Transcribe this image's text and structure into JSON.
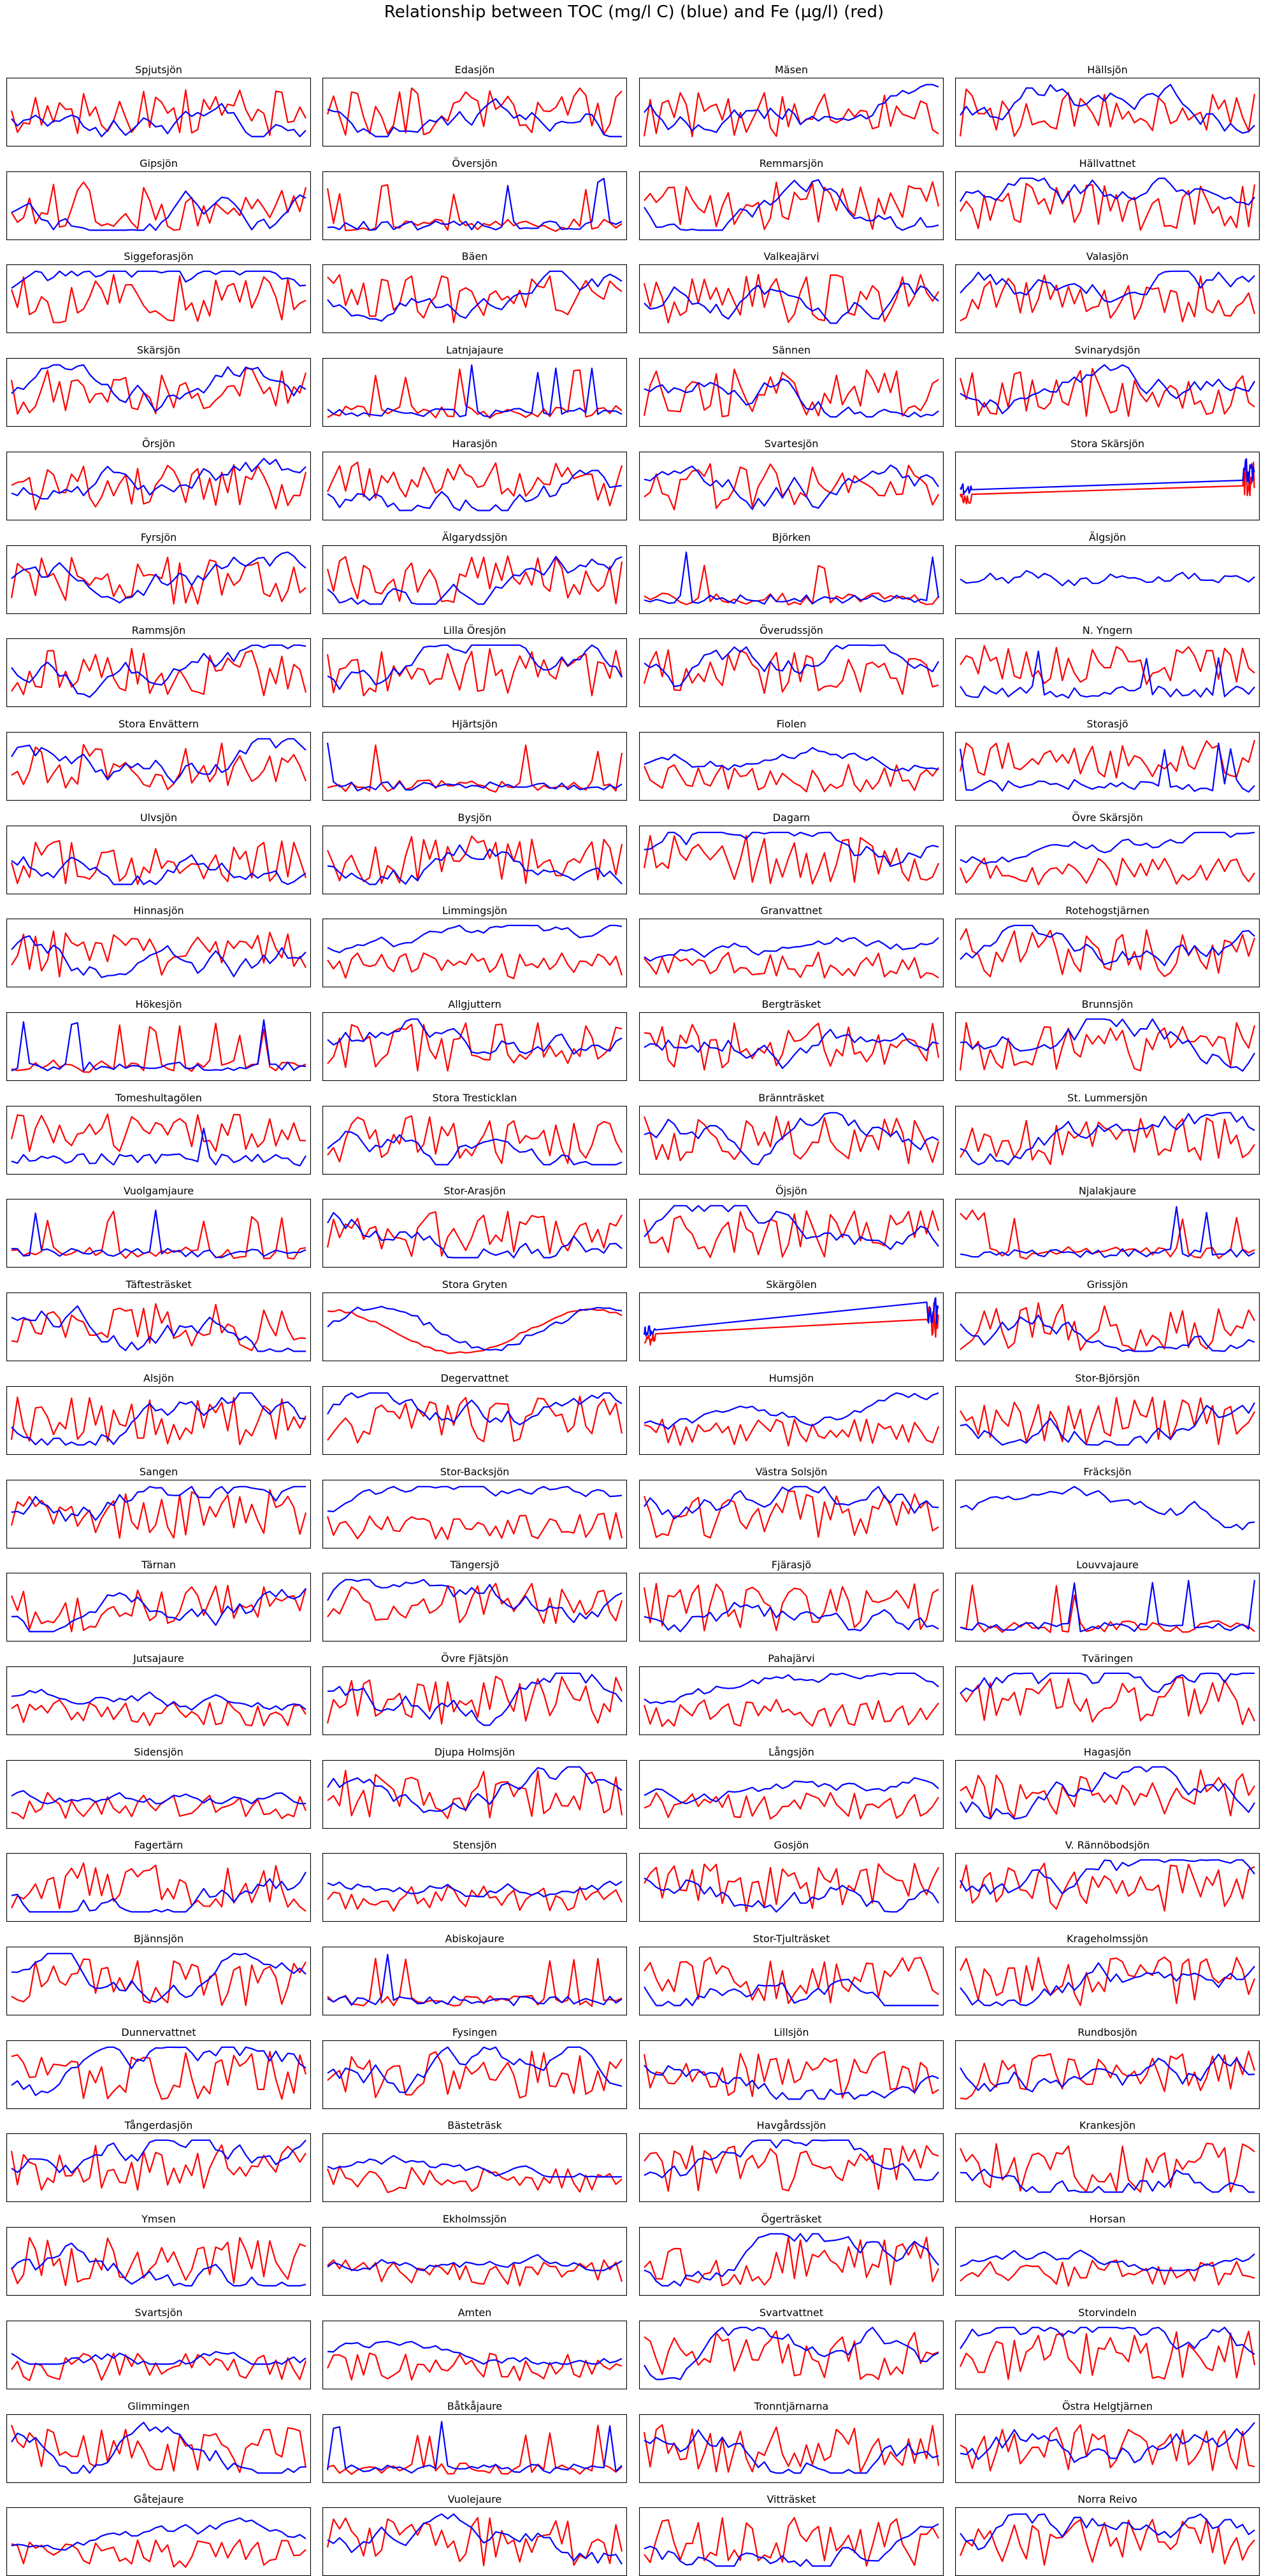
{
  "title": "Relationship between TOC (mg/l C) (blue) and Fe (µg/l) (red)",
  "colors": {
    "toc": "#0000ff",
    "fe": "#ff0000"
  },
  "chart_data": {
    "type": "line",
    "layout": {
      "columns": 4,
      "rows": 27
    },
    "series_colors": {
      "toc": "#0000ff",
      "fe": "#ff0000"
    },
    "panels": [
      {
        "title": "Spjutsjön",
        "style": "normal"
      },
      {
        "title": "Edasjön",
        "style": "normal"
      },
      {
        "title": "Mäsen",
        "style": "normal"
      },
      {
        "title": "Hällsjön",
        "style": "normal"
      },
      {
        "title": "Gipsjön",
        "style": "normal"
      },
      {
        "title": "Översjön",
        "style": "spiky"
      },
      {
        "title": "Remmarsjön",
        "style": "normal"
      },
      {
        "title": "Hällvattnet",
        "style": "normal"
      },
      {
        "title": "Siggeforasjön",
        "style": "normal"
      },
      {
        "title": "Bäen",
        "style": "normal"
      },
      {
        "title": "Valkeajärvi",
        "style": "normal"
      },
      {
        "title": "Valasjön",
        "style": "normal"
      },
      {
        "title": "Skärsjön",
        "style": "normal"
      },
      {
        "title": "Latnjajaure",
        "style": "spiky"
      },
      {
        "title": "Sännen",
        "style": "normal"
      },
      {
        "title": "Svinarydsjön",
        "style": "normal"
      },
      {
        "title": "Örsjön",
        "style": "normal"
      },
      {
        "title": "Harasjön",
        "style": "normal"
      },
      {
        "title": "Svartesjön",
        "style": "normal"
      },
      {
        "title": "Stora Skärsjön",
        "style": "gap"
      },
      {
        "title": "Fyrsjön",
        "style": "normal"
      },
      {
        "title": "Älgarydssjön",
        "style": "normal"
      },
      {
        "title": "Björken",
        "style": "spiky"
      },
      {
        "title": "Älgsjön",
        "style": "blueonly"
      },
      {
        "title": "Rammsjön",
        "style": "normal"
      },
      {
        "title": "Lilla Öresjön",
        "style": "normal"
      },
      {
        "title": "Överudssjön",
        "style": "normal"
      },
      {
        "title": "N. Yngern",
        "style": "redhigh"
      },
      {
        "title": "Stora Envättern",
        "style": "normal"
      },
      {
        "title": "Hjärtsjön",
        "style": "spiky"
      },
      {
        "title": "Fiolen",
        "style": "bluehigh"
      },
      {
        "title": "Storasjö",
        "style": "redhigh"
      },
      {
        "title": "Ulvsjön",
        "style": "normal"
      },
      {
        "title": "Bysjön",
        "style": "normal"
      },
      {
        "title": "Dagarn",
        "style": "normal"
      },
      {
        "title": "Övre Skärsjön",
        "style": "bluehigh"
      },
      {
        "title": "Hinnasjön",
        "style": "normal"
      },
      {
        "title": "Limmingsjön",
        "style": "bluehigh"
      },
      {
        "title": "Granvattnet",
        "style": "bluehigh"
      },
      {
        "title": "Rotehogstjärnen",
        "style": "normal"
      },
      {
        "title": "Hökesjön",
        "style": "spiky"
      },
      {
        "title": "Allgjuttern",
        "style": "normal"
      },
      {
        "title": "Bergträsket",
        "style": "normal"
      },
      {
        "title": "Brunnsjön",
        "style": "normal"
      },
      {
        "title": "Tomeshultagölen",
        "style": "redhigh"
      },
      {
        "title": "Stora Tresticklan",
        "style": "normal"
      },
      {
        "title": "Brännträsket",
        "style": "normal"
      },
      {
        "title": "St. Lummersjön",
        "style": "normal"
      },
      {
        "title": "Vuolgamjaure",
        "style": "spiky"
      },
      {
        "title": "Stor-Arasjön",
        "style": "normal"
      },
      {
        "title": "Öjsjön",
        "style": "normal"
      },
      {
        "title": "Njalakjaure",
        "style": "spiky"
      },
      {
        "title": "Täftesträsket",
        "style": "normal"
      },
      {
        "title": "Stora Gryten",
        "style": "smooth"
      },
      {
        "title": "Skärgölen",
        "style": "gap"
      },
      {
        "title": "Grissjön",
        "style": "normal"
      },
      {
        "title": "Alsjön",
        "style": "normal"
      },
      {
        "title": "Degervattnet",
        "style": "normal"
      },
      {
        "title": "Humsjön",
        "style": "bluehigh"
      },
      {
        "title": "Stor-Björsjön",
        "style": "normal"
      },
      {
        "title": "Sangen",
        "style": "normal"
      },
      {
        "title": "Stor-Backsjön",
        "style": "bluehigh"
      },
      {
        "title": "Västra Solsjön",
        "style": "normal"
      },
      {
        "title": "Fräcksjön",
        "style": "blueonly"
      },
      {
        "title": "Tärnan",
        "style": "normal"
      },
      {
        "title": "Tängersjö",
        "style": "normal"
      },
      {
        "title": "Fjärasjö",
        "style": "normal"
      },
      {
        "title": "Louvvajaure",
        "style": "spiky"
      },
      {
        "title": "Jutsajaure",
        "style": "bluehigh"
      },
      {
        "title": "Övre Fjätsjön",
        "style": "normal"
      },
      {
        "title": "Pahajärvi",
        "style": "bluehigh"
      },
      {
        "title": "Tväringen",
        "style": "normal"
      },
      {
        "title": "Sidensjön",
        "style": "bluehigh"
      },
      {
        "title": "Djupa Holmsjön",
        "style": "normal"
      },
      {
        "title": "Långsjön",
        "style": "bluehigh"
      },
      {
        "title": "Hagasjön",
        "style": "normal"
      },
      {
        "title": "Fagertärn",
        "style": "normal"
      },
      {
        "title": "Stensjön",
        "style": "bluehigh"
      },
      {
        "title": "Gosjön",
        "style": "normal"
      },
      {
        "title": "V. Rännöbodsjön",
        "style": "normal"
      },
      {
        "title": "Bjännsjön",
        "style": "normal"
      },
      {
        "title": "Abiskojaure",
        "style": "spiky"
      },
      {
        "title": "Stor-Tjulträsket",
        "style": "normal"
      },
      {
        "title": "Krageholmssjön",
        "style": "normal"
      },
      {
        "title": "Dunnervattnet",
        "style": "normal"
      },
      {
        "title": "Fysingen",
        "style": "normal"
      },
      {
        "title": "Lillsjön",
        "style": "normal"
      },
      {
        "title": "Rundbosjön",
        "style": "normal"
      },
      {
        "title": "Tångerdasjön",
        "style": "normal"
      },
      {
        "title": "Bästeträsk",
        "style": "bluehigh"
      },
      {
        "title": "Havgårdssjön",
        "style": "normal"
      },
      {
        "title": "Krankesjön",
        "style": "normal"
      },
      {
        "title": "Ymsen",
        "style": "normal"
      },
      {
        "title": "Ekholmssjön",
        "style": "bluehigh"
      },
      {
        "title": "Ögerträsket",
        "style": "normal"
      },
      {
        "title": "Horsan",
        "style": "bluehigh"
      },
      {
        "title": "Svartsjön",
        "style": "bluehigh"
      },
      {
        "title": "Amten",
        "style": "bluehigh"
      },
      {
        "title": "Svartvattnet",
        "style": "normal"
      },
      {
        "title": "Storvindeln",
        "style": "normal"
      },
      {
        "title": "Glimmingen",
        "style": "normal"
      },
      {
        "title": "Båtkåjaure",
        "style": "spiky"
      },
      {
        "title": "Tronntjärnarna",
        "style": "normal"
      },
      {
        "title": "Östra Helgtjärnen",
        "style": "normal"
      },
      {
        "title": "Gåtejaure",
        "style": "bluehigh"
      },
      {
        "title": "Vuolejaure",
        "style": "normal"
      },
      {
        "title": "Vitträsket",
        "style": "normal"
      },
      {
        "title": "Norra Reivo",
        "style": "normal"
      }
    ]
  }
}
